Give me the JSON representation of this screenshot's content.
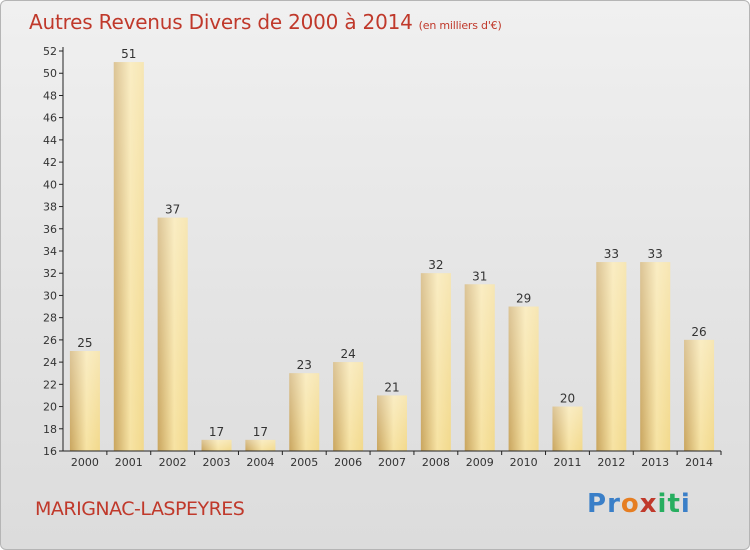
{
  "title": "Autres Revenus Divers de 2000 à 2014",
  "unit": "(en milliers d'€)",
  "location": "MARIGNAC-LASPEYRES",
  "brand": "Proxiti",
  "brand_letters": [
    {
      "ch": "P",
      "color": "#3a7fc8"
    },
    {
      "ch": "r",
      "color": "#3a7fc8"
    },
    {
      "ch": "o",
      "color": "#e67e22"
    },
    {
      "ch": "x",
      "color": "#c0392b"
    },
    {
      "ch": "i",
      "color": "#27ae60"
    },
    {
      "ch": "t",
      "color": "#27ae60"
    },
    {
      "ch": "i",
      "color": "#3a7fc8"
    }
  ],
  "colors": {
    "title": "#c0392b",
    "bar_light": "#f7e3a3",
    "bar_dark": "#c9a55e",
    "axis": "#222222",
    "grid": "#d0d0d0"
  },
  "chart_data": {
    "type": "bar",
    "categories": [
      "2000",
      "2001",
      "2002",
      "2003",
      "2004",
      "2005",
      "2006",
      "2007",
      "2008",
      "2009",
      "2010",
      "2011",
      "2012",
      "2013",
      "2014"
    ],
    "values": [
      25,
      51,
      37,
      17,
      17,
      23,
      24,
      21,
      32,
      31,
      29,
      20,
      33,
      33,
      26
    ],
    "value_labels": [
      "25",
      "51",
      "37",
      "17",
      "17",
      "23",
      "24",
      "21",
      "32",
      "31",
      "29",
      "20",
      "33",
      "33",
      "26"
    ],
    "title": "Autres Revenus Divers de 2000 à 2014",
    "xlabel": "",
    "ylabel": "",
    "ylim": [
      16,
      52
    ],
    "yticks": [
      16,
      18,
      20,
      22,
      24,
      26,
      28,
      30,
      32,
      34,
      36,
      38,
      40,
      42,
      44,
      46,
      48,
      50,
      52
    ],
    "grid": false,
    "legend": "none"
  }
}
